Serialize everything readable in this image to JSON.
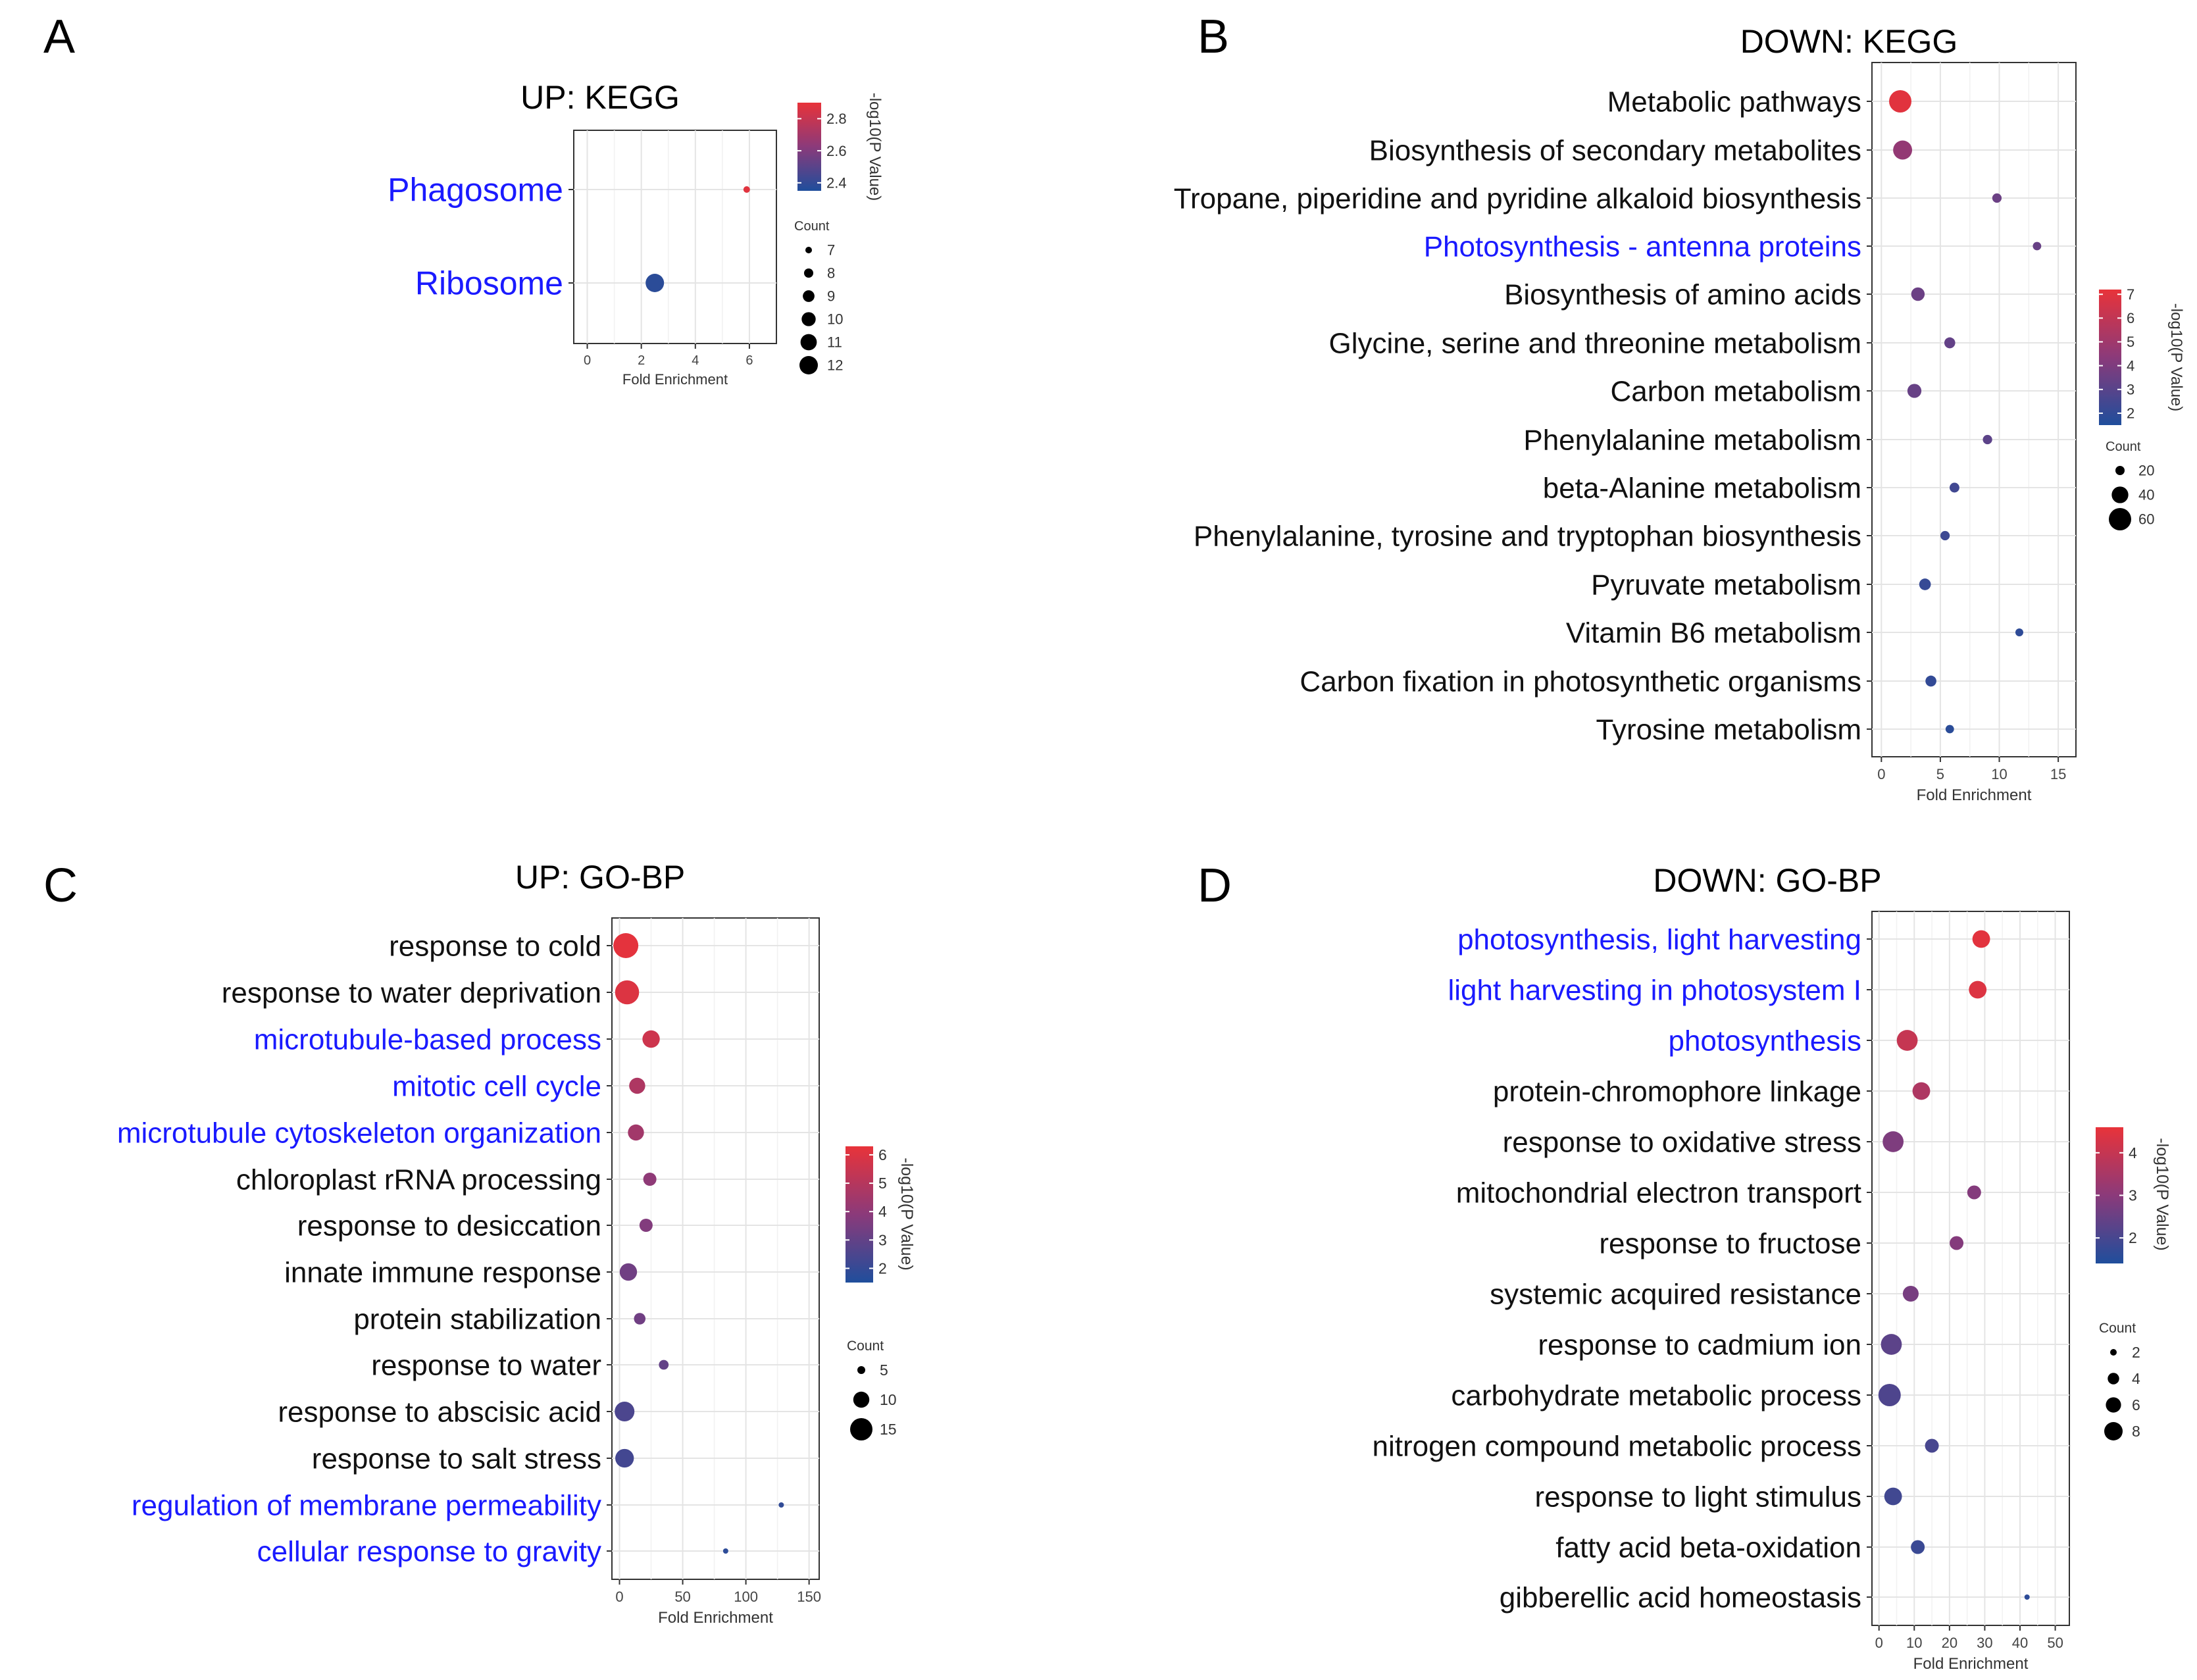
{
  "colors": {
    "low": "#1f4e9c",
    "mid": "#8b3a7a",
    "high": "#e8333a",
    "highlight": "#1a1aff",
    "label": "#111111"
  },
  "chart_data": [
    {
      "panel_letter": "A",
      "type": "scatter",
      "title": "UP: KEGG",
      "xlabel": "Fold Enrichment",
      "xlim": [
        -0.5,
        7
      ],
      "xticks": [
        "0",
        "2",
        "4",
        "6"
      ],
      "xtick_values": [
        0,
        2,
        4,
        6
      ],
      "colorbar_label": "-log10(P Value)",
      "color_range": [
        2.35,
        2.9
      ],
      "colorbar_ticks": [
        "2.4",
        "2.6",
        "2.8"
      ],
      "colorbar_tick_values": [
        2.4,
        2.6,
        2.8
      ],
      "size_legend_title": "Count",
      "size_range": [
        7,
        12
      ],
      "size_legend": [
        "7",
        "8",
        "9",
        "10",
        "11",
        "12"
      ],
      "size_legend_values": [
        7,
        8,
        9,
        10,
        11,
        12
      ],
      "categories": [
        "Phagosome",
        "Ribosome"
      ],
      "highlight": [
        true,
        true
      ],
      "fold_enrichment": [
        5.9,
        2.5
      ],
      "log_p": [
        2.88,
        2.38
      ],
      "count": [
        7,
        12
      ]
    },
    {
      "panel_letter": "B",
      "type": "scatter",
      "title": "DOWN: KEGG",
      "xlabel": "Fold Enrichment",
      "xlim": [
        -0.8,
        16.5
      ],
      "xticks": [
        "0",
        "5",
        "10",
        "15"
      ],
      "xtick_values": [
        0,
        5,
        10,
        15
      ],
      "colorbar_label": "-log10(P Value)",
      "color_range": [
        1.5,
        7.2
      ],
      "colorbar_ticks": [
        "2",
        "3",
        "4",
        "5",
        "6",
        "7"
      ],
      "colorbar_tick_values": [
        2,
        3,
        4,
        5,
        6,
        7
      ],
      "size_legend_title": "Count",
      "size_range": [
        5,
        65
      ],
      "size_legend": [
        "20",
        "40",
        "60"
      ],
      "size_legend_values": [
        20,
        40,
        60
      ],
      "categories": [
        "Metabolic pathways",
        "Biosynthesis of secondary metabolites",
        "Tropane, piperidine and pyridine alkaloid biosynthesis",
        "Photosynthesis - antenna proteins",
        "Biosynthesis of amino acids",
        "Glycine, serine and threonine metabolism",
        "Carbon metabolism",
        "Phenylalanine metabolism",
        "beta-Alanine metabolism",
        "Phenylalanine, tyrosine and tryptophan biosynthesis",
        "Pyruvate metabolism",
        "Vitamin B6 metabolism",
        "Carbon fixation in photosynthetic organisms",
        "Tyrosine metabolism"
      ],
      "highlight": [
        false,
        false,
        false,
        true,
        false,
        false,
        false,
        false,
        false,
        false,
        false,
        false,
        false,
        false
      ],
      "fold_enrichment": [
        1.6,
        1.8,
        9.8,
        13.2,
        3.1,
        5.8,
        2.8,
        9.0,
        6.2,
        5.4,
        3.7,
        11.7,
        4.2,
        5.8
      ],
      "log_p": [
        7.0,
        4.6,
        3.5,
        3.4,
        3.5,
        3.3,
        3.4,
        3.1,
        2.4,
        2.3,
        2.1,
        1.9,
        2.0,
        1.8
      ],
      "count": [
        65,
        45,
        8,
        6,
        20,
        12,
        22,
        8,
        9,
        8,
        14,
        5,
        12,
        6
      ]
    },
    {
      "panel_letter": "C",
      "type": "scatter",
      "title": "UP: GO-BP",
      "xlabel": "Fold Enrichment",
      "xlim": [
        -6,
        158
      ],
      "xticks": [
        "0",
        "50",
        "100",
        "150"
      ],
      "xtick_values": [
        0,
        50,
        100,
        150
      ],
      "colorbar_label": "-log10(P Value)",
      "color_range": [
        1.5,
        6.3
      ],
      "colorbar_ticks": [
        "2",
        "3",
        "4",
        "5",
        "6"
      ],
      "colorbar_tick_values": [
        2,
        3,
        4,
        5,
        6
      ],
      "size_legend_title": "Count",
      "size_range": [
        2,
        16
      ],
      "size_legend": [
        "5",
        "10",
        "15"
      ],
      "size_legend_values": [
        5,
        10,
        15
      ],
      "categories": [
        "response to cold",
        "response to water deprivation",
        "microtubule-based process",
        "mitotic cell cycle",
        "microtubule cytoskeleton organization",
        "chloroplast rRNA processing",
        "response to desiccation",
        "innate immune response",
        "protein stabilization",
        "response to water",
        "response to abscisic acid",
        "response to salt stress",
        "regulation of membrane permeability",
        "cellular response to gravity"
      ],
      "highlight": [
        false,
        false,
        true,
        true,
        true,
        false,
        false,
        false,
        false,
        false,
        false,
        false,
        true,
        true
      ],
      "fold_enrichment": [
        5,
        6,
        25,
        14,
        13,
        24,
        21,
        7,
        16,
        35,
        4,
        4,
        128,
        84
      ],
      "log_p": [
        6.2,
        6.0,
        5.6,
        4.8,
        4.5,
        4.0,
        3.7,
        3.3,
        3.3,
        3.0,
        2.5,
        2.3,
        1.9,
        1.8
      ],
      "count": [
        16,
        15,
        9,
        8,
        8,
        6,
        6,
        9,
        5,
        4,
        11,
        10,
        2,
        2
      ]
    },
    {
      "panel_letter": "D",
      "type": "scatter",
      "title": "DOWN: GO-BP",
      "xlabel": "Fold Enrichment",
      "xlim": [
        -2,
        54
      ],
      "xticks": [
        "0",
        "10",
        "20",
        "30",
        "40",
        "50"
      ],
      "xtick_values": [
        0,
        10,
        20,
        30,
        40,
        50
      ],
      "colorbar_label": "-log10(P Value)",
      "color_range": [
        1.4,
        4.6
      ],
      "colorbar_ticks": [
        "2",
        "3",
        "4"
      ],
      "colorbar_tick_values": [
        2,
        3,
        4
      ],
      "size_legend_title": "Count",
      "size_range": [
        1,
        9
      ],
      "size_legend": [
        "2",
        "4",
        "6",
        "8"
      ],
      "size_legend_values": [
        2,
        4,
        6,
        8
      ],
      "categories": [
        "photosynthesis, light harvesting",
        "light harvesting in photosystem I",
        "photosynthesis",
        "protein-chromophore linkage",
        "response to oxidative stress",
        "mitochondrial electron transport",
        "response to fructose",
        "systemic acquired resistance",
        "response to cadmium ion",
        "carbohydrate metabolic process",
        "nitrogen compound metabolic process",
        "response to light stimulus",
        "fatty acid beta-oxidation",
        "gibberellic acid homeostasis"
      ],
      "highlight": [
        true,
        true,
        true,
        false,
        false,
        false,
        false,
        false,
        false,
        false,
        false,
        false,
        false,
        false
      ],
      "fold_enrichment": [
        29,
        28,
        8,
        12,
        4,
        27,
        22,
        9,
        3.5,
        3,
        15,
        4,
        11,
        42
      ],
      "log_p": [
        4.5,
        4.4,
        4.0,
        3.6,
        2.8,
        2.9,
        2.9,
        2.7,
        2.3,
        2.1,
        2.0,
        1.9,
        1.8,
        1.6
      ],
      "count": [
        6,
        6,
        8,
        6,
        8,
        4,
        4,
        5,
        8,
        9,
        4,
        6,
        4,
        1
      ]
    }
  ]
}
